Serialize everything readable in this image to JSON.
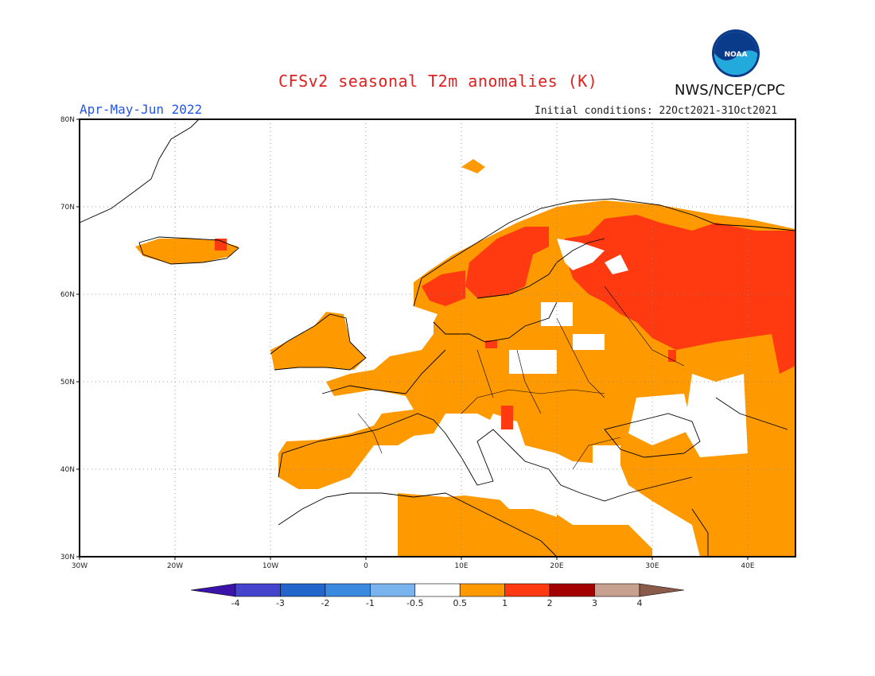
{
  "header": {
    "title": "CFSv2 seasonal T2m anomalies (K)",
    "org": "NWS/NCEP/CPC",
    "period": "Apr-May-Jun 2022",
    "initial_conditions": "Initial conditions: 22Oct2021-31Oct2021"
  },
  "logo": {
    "text": "NOAA"
  },
  "map": {
    "lon_range": [
      -30,
      45
    ],
    "lat_range": [
      30,
      80
    ],
    "lat_ticks": [
      "30N",
      "40N",
      "50N",
      "60N",
      "70N",
      "80N"
    ],
    "lon_ticks": [
      "30W",
      "20W",
      "10W",
      "0",
      "10E",
      "20E",
      "30E",
      "40E"
    ],
    "grid": "dotted"
  },
  "colorbar": {
    "labels": [
      "-4",
      "-3",
      "-2",
      "-1",
      "-0.5",
      "0.5",
      "1",
      "2",
      "3",
      "4"
    ],
    "colors": [
      "#3a14a8",
      "#4444cc",
      "#2266cc",
      "#3a8ae0",
      "#7ab4ee",
      "#ffffff",
      "#ff9900",
      "#ff3a10",
      "#a30000",
      "#c8a090",
      "#8a5a4a"
    ]
  },
  "anomaly_colors": {
    "0.5-1": "#ff9900",
    "1-2": "#ff3a10",
    "2-3": "#a30000"
  }
}
